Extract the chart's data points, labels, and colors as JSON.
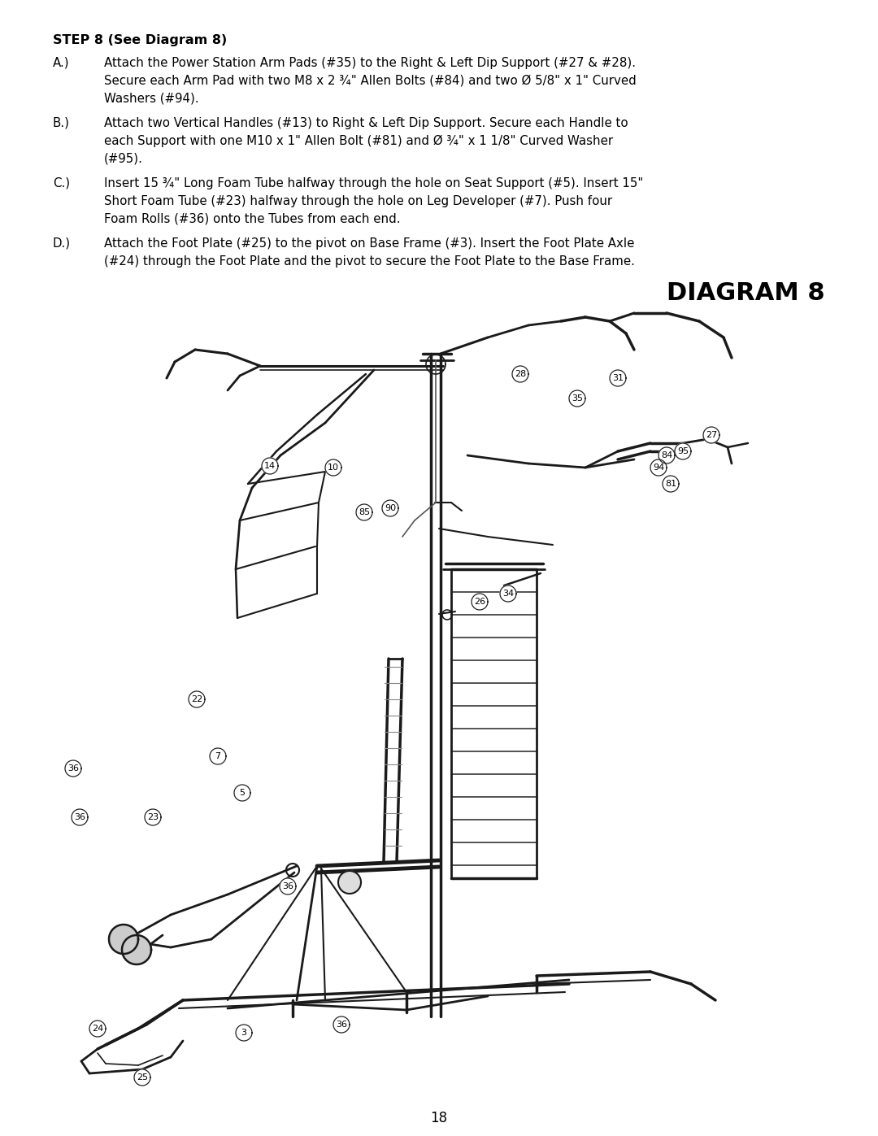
{
  "bg_color": "#ffffff",
  "page_number": "18",
  "step_title": "STEP 8 (See Diagram 8)",
  "diagram_title": "DIAGRAM 8",
  "instructions": [
    {
      "label": "A.)",
      "lines": [
        "Attach the Power Station Arm Pads (#35) to the Right & Left Dip Support (#27 & #28).",
        "Secure each Arm Pad with two M8 x 2 ¾\" Allen Bolts (#84) and two Ø 5/8\" x 1\" Curved",
        "Washers (#94)."
      ]
    },
    {
      "label": "B.)",
      "lines": [
        "Attach two Vertical Handles (#13) to Right & Left Dip Support. Secure each Handle to",
        "each Support with one M10 x 1\" Allen Bolt (#81) and Ø ¾\" x 1 1/8\" Curved Washer",
        "(#95)."
      ]
    },
    {
      "label": "C.)",
      "lines": [
        "Insert 15 ¾\" Long Foam Tube halfway through the hole on Seat Support (#5). Insert 15\"",
        "Short Foam Tube (#23) halfway through the hole on Leg Developer (#7). Push four",
        "Foam Rolls (#36) onto the Tubes from each end."
      ]
    },
    {
      "label": "D.)",
      "lines": [
        "Attach the Foot Plate (#25) to the pivot on Base Frame (#3). Insert the Foot Plate Axle",
        "(#24) through the Foot Plate and the pivot to secure the Foot Plate to the Base Frame."
      ]
    }
  ],
  "font_family": "DejaVu Sans",
  "title_fontsize": 11.5,
  "body_fontsize": 10.8,
  "diagram_label_fontsize": 22,
  "page_num_fontsize": 12
}
